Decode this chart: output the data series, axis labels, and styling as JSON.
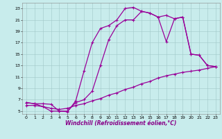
{
  "xlabel": "Windchill (Refroidissement éolien,°C)",
  "bg_color": "#c8ecec",
  "grid_color": "#a0c8c8",
  "line_color": "#990099",
  "xlim": [
    -0.5,
    23.5
  ],
  "ylim": [
    4.5,
    24.0
  ],
  "xticks": [
    0,
    1,
    2,
    3,
    4,
    5,
    6,
    7,
    8,
    9,
    10,
    11,
    12,
    13,
    14,
    15,
    16,
    17,
    18,
    19,
    20,
    21,
    22,
    23
  ],
  "yticks": [
    5,
    7,
    9,
    11,
    13,
    15,
    17,
    19,
    21,
    23
  ],
  "line1_x": [
    0,
    1,
    2,
    3,
    4,
    5,
    6,
    7,
    8,
    9,
    10,
    11,
    12,
    13,
    14,
    15,
    16,
    17,
    18,
    19,
    20,
    21,
    22,
    23
  ],
  "line1_y": [
    6.5,
    6.3,
    6.3,
    6.2,
    5.0,
    4.9,
    6.8,
    12.0,
    17.0,
    19.5,
    20.0,
    21.0,
    23.0,
    23.2,
    22.5,
    22.2,
    21.5,
    17.2,
    21.2,
    21.5,
    15.0,
    14.8,
    13.0,
    12.8
  ],
  "line2_x": [
    0,
    1,
    2,
    3,
    4,
    5,
    6,
    7,
    8,
    9,
    10,
    11,
    12,
    13,
    14,
    15,
    16,
    17,
    18,
    19,
    20,
    21,
    22,
    23
  ],
  "line2_y": [
    6.5,
    6.3,
    5.8,
    5.0,
    5.0,
    5.0,
    6.5,
    7.0,
    8.5,
    13.0,
    17.5,
    20.0,
    21.0,
    21.0,
    22.5,
    22.2,
    21.5,
    21.8,
    21.2,
    21.5,
    15.0,
    14.8,
    13.0,
    12.8
  ],
  "line3_x": [
    0,
    1,
    2,
    3,
    4,
    5,
    6,
    7,
    8,
    9,
    10,
    11,
    12,
    13,
    14,
    15,
    16,
    17,
    18,
    19,
    20,
    21,
    22,
    23
  ],
  "line3_y": [
    6.0,
    6.0,
    5.8,
    5.5,
    5.3,
    5.5,
    6.0,
    6.3,
    6.8,
    7.2,
    7.8,
    8.2,
    8.8,
    9.2,
    9.8,
    10.2,
    10.8,
    11.2,
    11.5,
    11.8,
    12.0,
    12.2,
    12.5,
    12.8
  ],
  "marker": "+",
  "markersize": 3,
  "markeredgewidth": 0.8,
  "linewidth": 0.9,
  "tick_fontsize": 4.5,
  "xlabel_fontsize": 5.5
}
